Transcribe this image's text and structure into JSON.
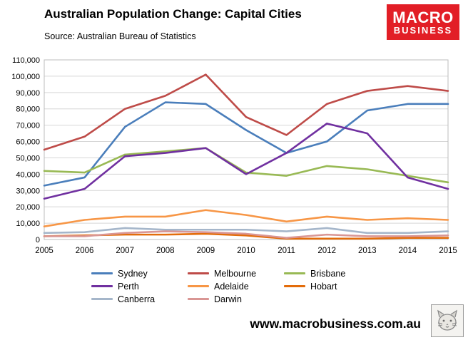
{
  "header": {
    "title": "Australian Population Change: Capital Cities",
    "source": "Source: Australian Bureau of Statistics",
    "logo": {
      "line1": "MACRO",
      "line2": "BUSINESS",
      "bg_color": "#e21e26"
    }
  },
  "chart_data": {
    "type": "line",
    "x": [
      2005,
      2006,
      2007,
      2008,
      2009,
      2010,
      2011,
      2012,
      2013,
      2014,
      2015
    ],
    "series": [
      {
        "name": "Sydney",
        "color": "#4a7ebb",
        "values": [
          33000,
          38000,
          69000,
          84000,
          83000,
          67000,
          53000,
          60000,
          79000,
          83000,
          83000
        ]
      },
      {
        "name": "Melbourne",
        "color": "#be4b48",
        "values": [
          55000,
          63000,
          80000,
          88000,
          101000,
          75000,
          64000,
          83000,
          91000,
          94000,
          91000
        ]
      },
      {
        "name": "Brisbane",
        "color": "#98b954",
        "values": [
          42000,
          41000,
          52000,
          54000,
          56000,
          41000,
          39000,
          45000,
          43000,
          39000,
          35000
        ]
      },
      {
        "name": "Perth",
        "color": "#7030a0",
        "values": [
          25000,
          31000,
          51000,
          53000,
          56000,
          40000,
          53000,
          71000,
          65000,
          38000,
          31000
        ]
      },
      {
        "name": "Adelaide",
        "color": "#f79646",
        "values": [
          8000,
          12000,
          14000,
          14000,
          18000,
          15000,
          11000,
          14000,
          12000,
          13000,
          12000
        ]
      },
      {
        "name": "Hobart",
        "color": "#e36c0a",
        "values": [
          2000,
          2500,
          3000,
          3000,
          3500,
          2500,
          500,
          500,
          500,
          1000,
          1000
        ]
      },
      {
        "name": "Canberra",
        "color": "#a5b6ca",
        "values": [
          4000,
          4500,
          7000,
          6000,
          6000,
          6000,
          5000,
          7000,
          4000,
          4000,
          5000
        ]
      },
      {
        "name": "Darwin",
        "color": "#d99694",
        "values": [
          2000,
          2000,
          4000,
          5000,
          4500,
          3500,
          1000,
          3000,
          2000,
          2000,
          2500
        ]
      }
    ],
    "title": "Australian Population Change: Capital Cities",
    "xlabel": "",
    "ylabel": "",
    "ylim": [
      0,
      110000
    ],
    "ytick_step": 10000,
    "grid": true,
    "legend_position": "bottom"
  },
  "footer": {
    "website": "www.macrobusiness.com.au"
  }
}
